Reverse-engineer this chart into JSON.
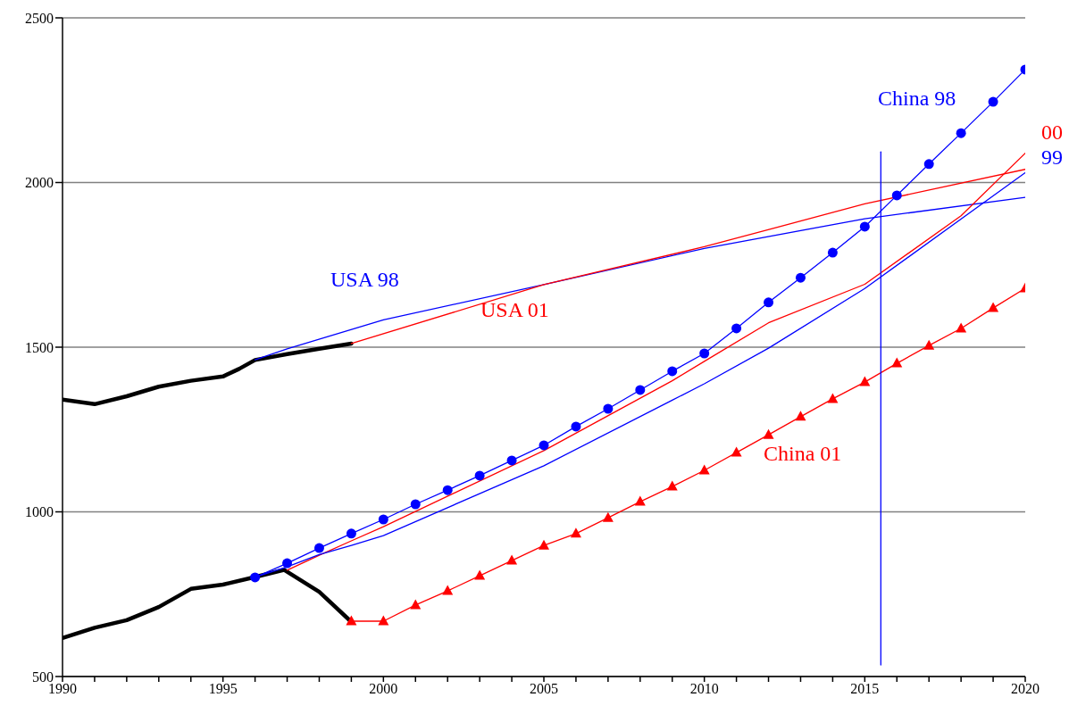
{
  "chart_data": {
    "type": "line",
    "xlim": [
      1990,
      2020
    ],
    "ylim": [
      500,
      2500
    ],
    "xticks": [
      1990,
      {
        "value": 1991,
        "label": null
      },
      {
        "value": 1992,
        "label": null
      },
      {
        "value": 1993,
        "label": null
      },
      {
        "value": 1994,
        "label": null
      },
      1995,
      {
        "value": 1996,
        "label": null
      },
      {
        "value": 1997,
        "label": null
      },
      {
        "value": 1998,
        "label": null
      },
      {
        "value": 1999,
        "label": null
      },
      2000,
      {
        "value": 2001,
        "label": null
      },
      {
        "value": 2002,
        "label": null
      },
      {
        "value": 2003,
        "label": null
      },
      {
        "value": 2004,
        "label": null
      },
      2005,
      {
        "value": 2006,
        "label": null
      },
      {
        "value": 2007,
        "label": null
      },
      {
        "value": 2008,
        "label": null
      },
      {
        "value": 2009,
        "label": null
      },
      2010,
      {
        "value": 2011,
        "label": null
      },
      {
        "value": 2012,
        "label": null
      },
      {
        "value": 2013,
        "label": null
      },
      {
        "value": 2014,
        "label": null
      },
      2015,
      {
        "value": 2016,
        "label": null
      },
      {
        "value": 2017,
        "label": null
      },
      {
        "value": 2018,
        "label": null
      },
      {
        "value": 2019,
        "label": null
      },
      2020
    ],
    "yticks": [
      500,
      1000,
      1500,
      2000,
      2500
    ],
    "grid": "y",
    "legend": false,
    "series": [
      {
        "color": "#000000",
        "marker": "none",
        "x": [
          1990,
          1991,
          1992,
          1993,
          1994,
          1995,
          1995.5,
          1996,
          1997,
          1998,
          1999
        ],
        "values": [
          1341,
          1327,
          1351,
          1380,
          1398,
          1411,
          1434,
          1461,
          1479,
          1495,
          1511
        ]
      },
      {
        "color": "#000000",
        "marker": "none",
        "x": [
          1990,
          1991,
          1992,
          1993,
          1994,
          1995,
          1996,
          1996.9,
          1998,
          1999
        ],
        "values": [
          617,
          648,
          671,
          711,
          766,
          779,
          802,
          824,
          757,
          666
        ]
      },
      {
        "name": "USA 98",
        "color": "#0000ff",
        "marker": "none",
        "x": [
          1996,
          1997,
          2000,
          2005,
          2010,
          2015,
          2020
        ],
        "values": [
          1462,
          1495,
          1583,
          1690,
          1800,
          1890,
          1955
        ]
      },
      {
        "name": "USA 01",
        "color": "#ff0000",
        "marker": "none",
        "x": [
          1999,
          2005,
          2010,
          2015,
          2020
        ],
        "values": [
          1511,
          1690,
          1805,
          1935,
          2040
        ]
      },
      {
        "name": "China 98",
        "color": "#0000ff",
        "marker": "circle",
        "x": [
          1996,
          1997,
          1998,
          1999,
          2000,
          2001,
          2002,
          2003,
          2004,
          2005,
          2006,
          2007,
          2008,
          2009,
          2010,
          2011,
          2012,
          2013,
          2014,
          2015,
          2016,
          2017,
          2018,
          2019,
          2020
        ],
        "values": [
          801,
          844,
          890,
          934,
          977,
          1023,
          1066,
          1110,
          1156,
          1202,
          1259,
          1313,
          1370,
          1427,
          1481,
          1557,
          1636,
          1711,
          1787,
          1866,
          1961,
          2056,
          2150,
          2245,
          2343
        ]
      },
      {
        "name": "00",
        "color": "#ff0000",
        "marker": "none",
        "x": [
          1997,
          1998,
          1999,
          2000,
          2005,
          2009,
          2010,
          2012,
          2015,
          2018,
          2020
        ],
        "values": [
          823,
          868,
          912,
          955,
          1186,
          1398,
          1457,
          1574,
          1691,
          1899,
          2089
        ]
      },
      {
        "name": "99",
        "color": "#0000ff",
        "marker": "none",
        "x": [
          1996,
          1997,
          1998,
          1999,
          2000,
          2005,
          2009,
          2010,
          2012,
          2015,
          2020
        ],
        "values": [
          802,
          833,
          870,
          898,
          928,
          1140,
          1339,
          1389,
          1497,
          1678,
          2030
        ]
      },
      {
        "name": "China 01",
        "color": "#ff0000",
        "marker": "triangle",
        "x": [
          1999,
          2000,
          2001,
          2002,
          2003,
          2004,
          2005,
          2006,
          2007,
          2008,
          2009,
          2010,
          2011,
          2012,
          2013,
          2014,
          2015,
          2016,
          2017,
          2018,
          2019,
          2020
        ],
        "values": [
          668,
          668,
          717,
          760,
          806,
          852,
          898,
          934,
          982,
          1031,
          1077,
          1126,
          1180,
          1234,
          1289,
          1343,
          1394,
          1451,
          1505,
          1557,
          1619,
          1679
        ]
      },
      {
        "color": "#0000ff",
        "marker": "none",
        "x": [
          2015.5,
          2015.5
        ],
        "values": [
          2093,
          535
        ]
      }
    ]
  }
}
